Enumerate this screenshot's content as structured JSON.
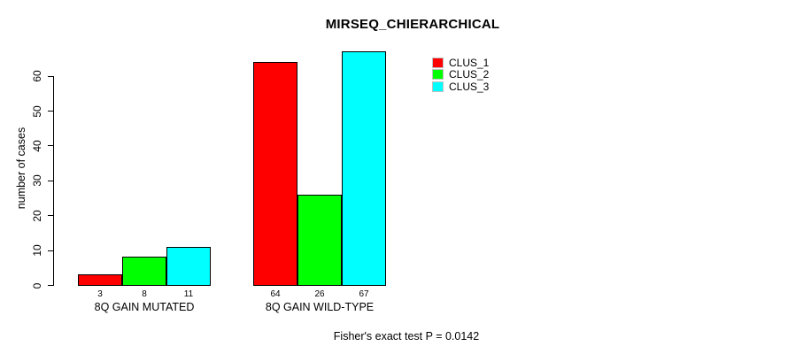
{
  "chart_data": {
    "type": "bar",
    "title": "MIRSEQ_CHIERARCHICAL",
    "ylabel": "number of cases",
    "xlabel": "",
    "categories": [
      "8Q GAIN MUTATED",
      "8Q GAIN WILD-TYPE"
    ],
    "series": [
      {
        "name": "CLUS_1",
        "color": "#ff0000",
        "values": [
          3,
          64
        ]
      },
      {
        "name": "CLUS_2",
        "color": "#00ff00",
        "values": [
          8,
          26
        ]
      },
      {
        "name": "CLUS_3",
        "color": "#00ffff",
        "values": [
          11,
          67
        ]
      }
    ],
    "yticks": [
      0,
      10,
      20,
      30,
      40,
      50,
      60
    ],
    "ylim": [
      0,
      67
    ],
    "grid": false,
    "legend_position": "top-right",
    "bar_border_color": "#000000",
    "annotation": "Fisher's exact test P = 0.0142"
  }
}
